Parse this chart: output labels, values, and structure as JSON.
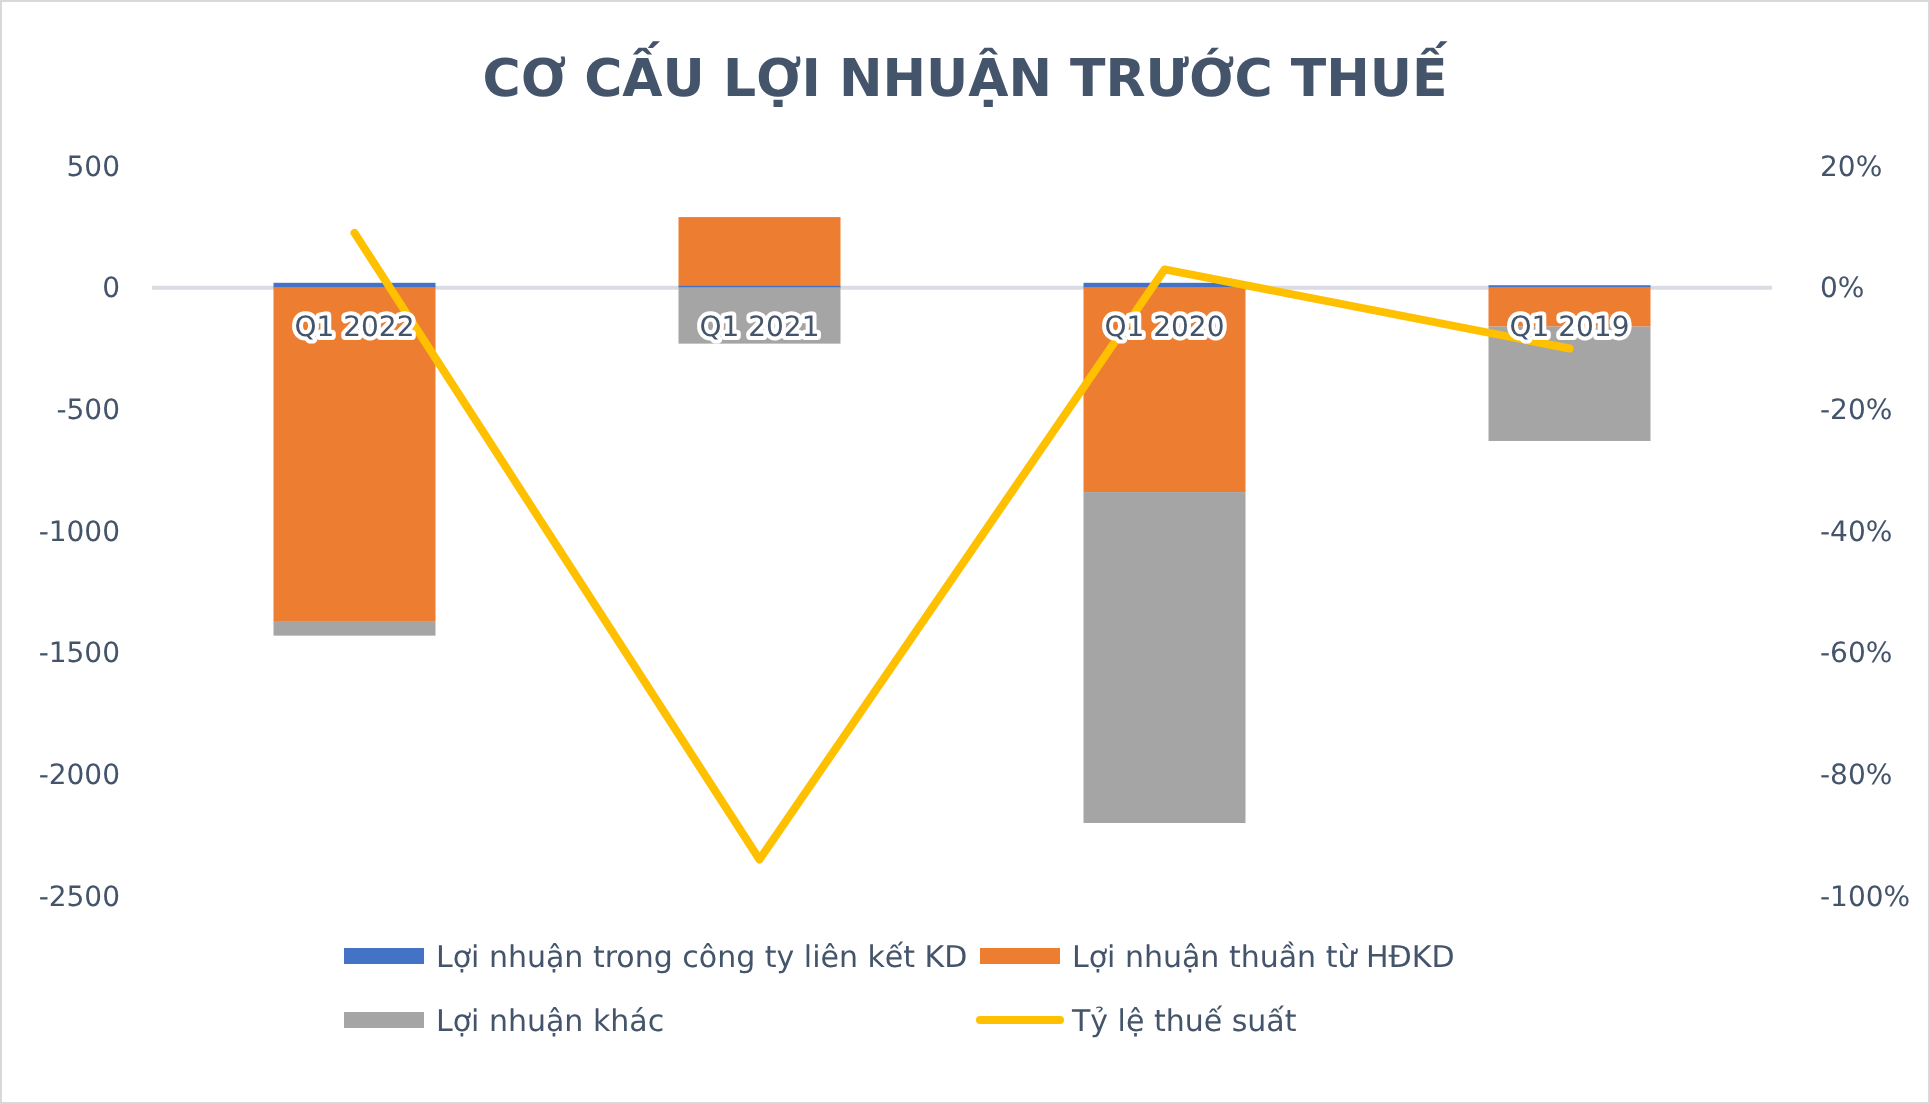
{
  "chart_data": {
    "type": "bar",
    "title": "CƠ CẤU LỢI NHUẬN TRƯỚC THUẾ",
    "categories": [
      "Q1 2022",
      "Q1 2021",
      "Q1 2020",
      "Q1 2019"
    ],
    "stacked": true,
    "series": [
      {
        "name": "Lợi nhuận trong công ty liên kết KD",
        "color": "#4472c4",
        "values": [
          20,
          10,
          20,
          10
        ]
      },
      {
        "name": "Lợi nhuận thuần từ HĐKD",
        "color": "#ed7d31",
        "values": [
          -1370,
          280,
          -840,
          -160
        ]
      },
      {
        "name": "Lợi nhuận khác",
        "color": "#a5a5a5",
        "values": [
          -60,
          -230,
          -1360,
          -470
        ]
      },
      {
        "name": "Tỷ lệ thuế suất",
        "type": "line",
        "axis": "y2",
        "color": "#ffc000",
        "values": [
          9,
          -94,
          3,
          -10
        ]
      }
    ],
    "ylim": [
      -2500,
      500
    ],
    "yticks": [
      -2500,
      -2000,
      -1500,
      -1000,
      -500,
      0,
      500
    ],
    "y2lim": [
      -100,
      20
    ],
    "y2ticks": [
      {
        "value": -100,
        "label": "-100%"
      },
      {
        "value": -80,
        "label": "-80%"
      },
      {
        "value": -60,
        "label": "-60%"
      },
      {
        "value": -40,
        "label": "-40%"
      },
      {
        "value": -20,
        "label": "-20%"
      },
      {
        "value": 0,
        "label": "0%"
      },
      {
        "value": 20,
        "label": "20%"
      }
    ],
    "legend": "bottom",
    "grid": false,
    "marker": "none",
    "line_style": "solid"
  }
}
